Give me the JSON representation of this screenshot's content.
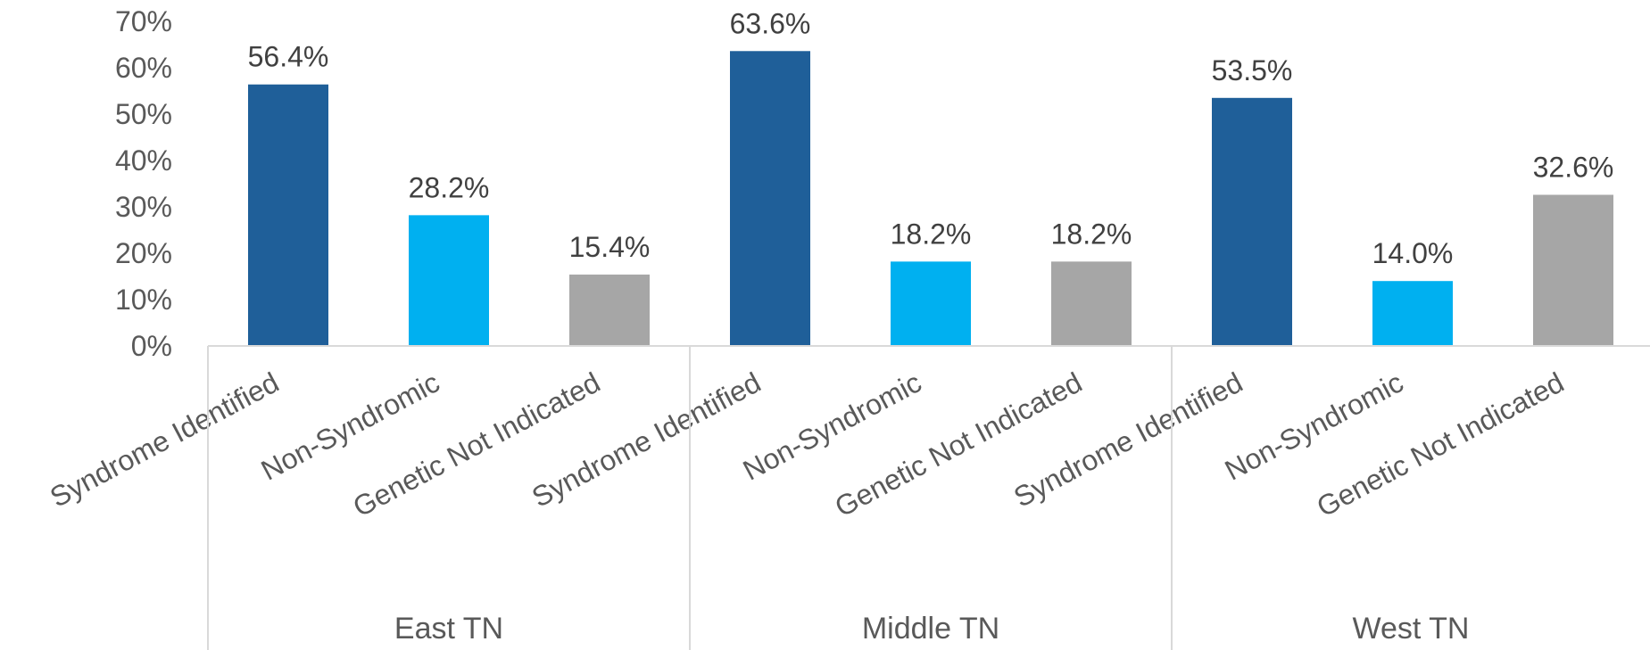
{
  "chart_data": {
    "type": "bar",
    "title": "",
    "xlabel": "",
    "ylabel": "",
    "ylim": [
      0,
      70
    ],
    "ytick_step": 10,
    "ytick_format": "percent",
    "grid": false,
    "legend": "none",
    "categories": [
      "Syndrome Identified",
      "Non-Syndromic",
      "Genetic Not Indicated"
    ],
    "category_colors": [
      "#1F5F99",
      "#00B0F0",
      "#A6A6A6"
    ],
    "groups": [
      {
        "name": "East TN",
        "values": [
          56.4,
          28.2,
          15.4
        ],
        "labels": [
          "56.4%",
          "28.2%",
          "15.4%"
        ]
      },
      {
        "name": "Middle TN",
        "values": [
          63.6,
          18.2,
          18.2
        ],
        "labels": [
          "63.6%",
          "18.2%",
          "18.2%"
        ]
      },
      {
        "name": "West TN",
        "values": [
          53.5,
          14.0,
          32.6
        ],
        "labels": [
          "53.5%",
          "14.0%",
          "32.6%"
        ]
      }
    ],
    "axis_color": "#D9D9D9"
  }
}
